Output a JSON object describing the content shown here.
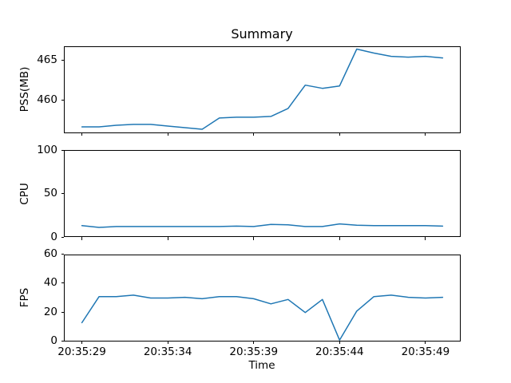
{
  "figure": {
    "background": "#ffffff",
    "axis_color": "#000000"
  },
  "chart_data": {
    "type": "line",
    "title": "Summary",
    "xlabel": "Time",
    "line_color": "#1f77b4",
    "grid": false,
    "legend": null,
    "x": [
      "20:35:29",
      "20:35:30",
      "20:35:31",
      "20:35:32",
      "20:35:33",
      "20:35:34",
      "20:35:35",
      "20:35:36",
      "20:35:37",
      "20:35:38",
      "20:35:39",
      "20:35:40",
      "20:35:41",
      "20:35:42",
      "20:35:43",
      "20:35:44",
      "20:35:45",
      "20:35:46",
      "20:35:47",
      "20:35:48",
      "20:35:49",
      "20:35:50"
    ],
    "x_tick_labels": [
      "20:35:29",
      "20:35:34",
      "20:35:39",
      "20:35:44",
      "20:35:49"
    ],
    "subplots": [
      {
        "ylabel": "PSS(MB)",
        "values": [
          456.7,
          456.7,
          456.9,
          457.0,
          457.0,
          456.8,
          456.6,
          456.4,
          457.8,
          457.9,
          457.9,
          458.0,
          459.0,
          461.9,
          461.5,
          461.8,
          466.4,
          465.9,
          465.5,
          465.4,
          465.5,
          465.3
        ],
        "ylim": [
          455.9,
          466.75
        ],
        "yticks": [
          460,
          465
        ]
      },
      {
        "ylabel": "CPU",
        "values": [
          13,
          11,
          12,
          12,
          12,
          12,
          12,
          12,
          12,
          12.5,
          12,
          14.5,
          14,
          12,
          12,
          15,
          13.5,
          13,
          13,
          13,
          13,
          12.5
        ],
        "ylim": [
          0,
          100
        ],
        "yticks": [
          0,
          50,
          100
        ]
      },
      {
        "ylabel": "FPS",
        "values": [
          13,
          31,
          31,
          32,
          30,
          30,
          30.5,
          29.5,
          31,
          31,
          29.5,
          26,
          29,
          20,
          29,
          1,
          21,
          31,
          32,
          30.5,
          30,
          30.5
        ],
        "ylim": [
          0,
          60
        ],
        "yticks": [
          0,
          20,
          40,
          60
        ]
      }
    ]
  }
}
